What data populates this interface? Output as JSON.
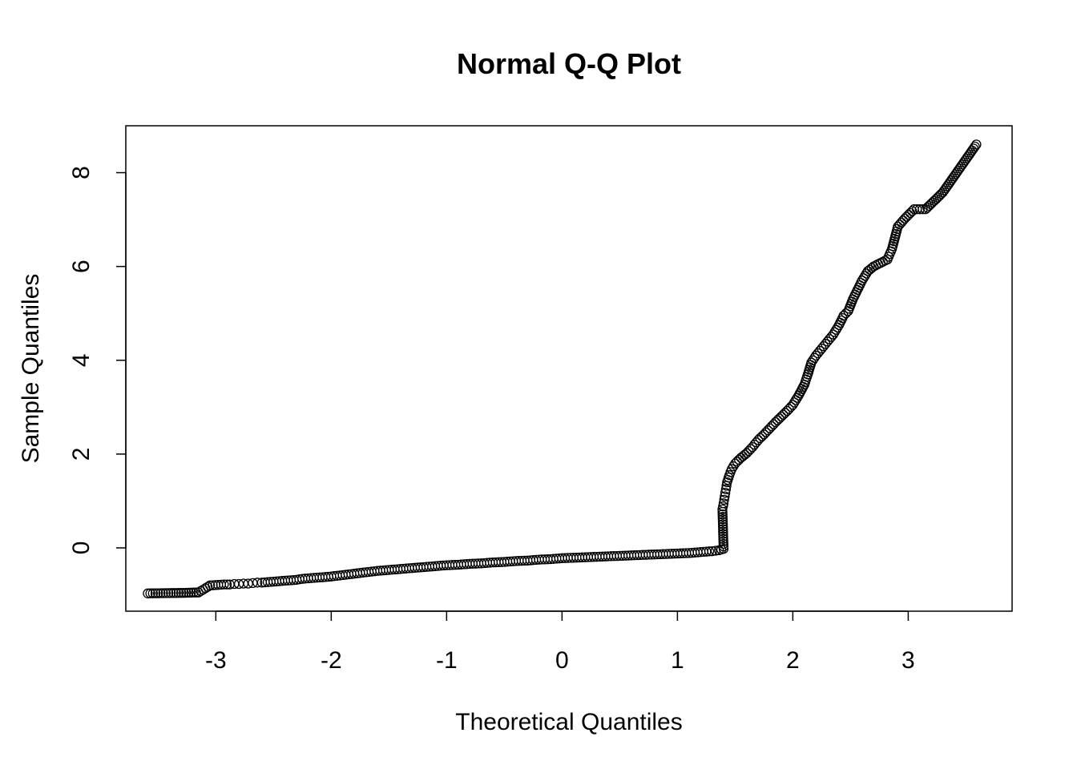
{
  "chart_data": {
    "type": "scatter",
    "title": "Normal Q-Q Plot",
    "xlabel": "Theoretical Quantiles",
    "ylabel": "Sample Quantiles",
    "xlim": [
      -3.78,
      3.9
    ],
    "ylim": [
      -1.35,
      9.0
    ],
    "xticks": [
      -3,
      -2,
      -1,
      0,
      1,
      2,
      3
    ],
    "yticks": [
      0,
      2,
      4,
      6,
      8
    ],
    "xtick_labels": [
      "-3",
      "-2",
      "-1",
      "0",
      "1",
      "2",
      "3"
    ],
    "ytick_labels": [
      "0",
      "2",
      "4",
      "6",
      "8"
    ],
    "grid": false,
    "marker": "open-circle",
    "points": [
      [
        -3.59,
        -0.97
      ],
      [
        -3.3,
        -0.96
      ],
      [
        -3.15,
        -0.95
      ],
      [
        -3.05,
        -0.8
      ],
      [
        -2.98,
        -0.79
      ],
      [
        -2.93,
        -0.78
      ],
      [
        -2.88,
        -0.78
      ],
      [
        -2.84,
        -0.77
      ],
      [
        -2.8,
        -0.77
      ],
      [
        -2.76,
        -0.76
      ],
      [
        -2.72,
        -0.76
      ],
      [
        -2.68,
        -0.75
      ],
      [
        -2.64,
        -0.74
      ],
      [
        -2.6,
        -0.74
      ],
      [
        -2.55,
        -0.73
      ],
      [
        -2.5,
        -0.72
      ],
      [
        -2.45,
        -0.71
      ],
      [
        -2.4,
        -0.7
      ],
      [
        -2.35,
        -0.69
      ],
      [
        -2.3,
        -0.68
      ],
      [
        -2.25,
        -0.66
      ],
      [
        -2.2,
        -0.65
      ],
      [
        -2.1,
        -0.63
      ],
      [
        -2.0,
        -0.61
      ],
      [
        -1.9,
        -0.58
      ],
      [
        -1.8,
        -0.55
      ],
      [
        -1.7,
        -0.52
      ],
      [
        -1.6,
        -0.49
      ],
      [
        -1.5,
        -0.47
      ],
      [
        -1.4,
        -0.45
      ],
      [
        -1.3,
        -0.43
      ],
      [
        -1.2,
        -0.41
      ],
      [
        -1.1,
        -0.39
      ],
      [
        -1.0,
        -0.37
      ],
      [
        -0.9,
        -0.36
      ],
      [
        -0.8,
        -0.34
      ],
      [
        -0.7,
        -0.33
      ],
      [
        -0.6,
        -0.31
      ],
      [
        -0.5,
        -0.3
      ],
      [
        -0.4,
        -0.28
      ],
      [
        -0.3,
        -0.27
      ],
      [
        -0.2,
        -0.25
      ],
      [
        -0.1,
        -0.24
      ],
      [
        0.0,
        -0.22
      ],
      [
        0.1,
        -0.21
      ],
      [
        0.2,
        -0.2
      ],
      [
        0.3,
        -0.19
      ],
      [
        0.4,
        -0.18
      ],
      [
        0.5,
        -0.17
      ],
      [
        0.6,
        -0.16
      ],
      [
        0.7,
        -0.15
      ],
      [
        0.8,
        -0.14
      ],
      [
        0.9,
        -0.13
      ],
      [
        1.0,
        -0.12
      ],
      [
        1.1,
        -0.11
      ],
      [
        1.2,
        -0.09
      ],
      [
        1.3,
        -0.07
      ],
      [
        1.36,
        -0.05
      ],
      [
        1.4,
        -0.02
      ],
      [
        1.39,
        0.82
      ],
      [
        1.4,
        0.95
      ],
      [
        1.41,
        1.1
      ],
      [
        1.42,
        1.25
      ],
      [
        1.43,
        1.4
      ],
      [
        1.45,
        1.55
      ],
      [
        1.47,
        1.68
      ],
      [
        1.5,
        1.8
      ],
      [
        1.55,
        1.92
      ],
      [
        1.6,
        2.02
      ],
      [
        1.65,
        2.15
      ],
      [
        1.7,
        2.3
      ],
      [
        1.75,
        2.42
      ],
      [
        1.8,
        2.55
      ],
      [
        1.85,
        2.68
      ],
      [
        1.9,
        2.8
      ],
      [
        1.95,
        2.92
      ],
      [
        2.0,
        3.05
      ],
      [
        2.05,
        3.25
      ],
      [
        2.1,
        3.48
      ],
      [
        2.13,
        3.7
      ],
      [
        2.16,
        3.95
      ],
      [
        2.2,
        4.1
      ],
      [
        2.25,
        4.25
      ],
      [
        2.3,
        4.4
      ],
      [
        2.35,
        4.55
      ],
      [
        2.4,
        4.75
      ],
      [
        2.44,
        4.95
      ],
      [
        2.48,
        5.05
      ],
      [
        2.52,
        5.3
      ],
      [
        2.56,
        5.5
      ],
      [
        2.6,
        5.7
      ],
      [
        2.65,
        5.9
      ],
      [
        2.7,
        6.0
      ],
      [
        2.74,
        6.05
      ],
      [
        2.78,
        6.1
      ],
      [
        2.82,
        6.15
      ],
      [
        2.86,
        6.38
      ],
      [
        2.91,
        6.85
      ],
      [
        2.97,
        7.02
      ],
      [
        3.05,
        7.22
      ],
      [
        3.15,
        7.22
      ],
      [
        3.3,
        7.58
      ],
      [
        3.59,
        8.6
      ]
    ]
  }
}
